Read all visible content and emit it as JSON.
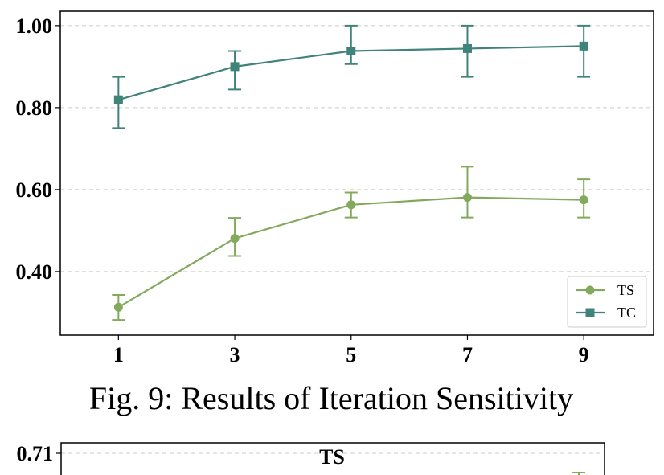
{
  "caption": "Fig. 9: Results of Iteration Sensitivity",
  "chart_data": [
    {
      "type": "line",
      "title": "",
      "xlabel": "",
      "ylabel": "",
      "x": [
        1,
        3,
        5,
        7,
        9
      ],
      "x_tick_labels": [
        "1",
        "3",
        "5",
        "7",
        "9"
      ],
      "y_tick_labels": [
        "0.40",
        "0.60",
        "0.80",
        "1.00"
      ],
      "y_ticks": [
        0.4,
        0.6,
        0.8,
        1.0
      ],
      "ylim": [
        0.245,
        1.035
      ],
      "xlim": [
        0,
        10.2
      ],
      "grid": "horizontal dashed",
      "legend_position": "lower-right",
      "series": [
        {
          "name": "TS",
          "marker": "circle",
          "color": "#83a95c",
          "values": [
            0.313,
            0.481,
            0.563,
            0.581,
            0.575
          ],
          "error_low": [
            0.282,
            0.438,
            0.532,
            0.532,
            0.532
          ],
          "error_high": [
            0.343,
            0.531,
            0.593,
            0.656,
            0.625
          ]
        },
        {
          "name": "TC",
          "marker": "square",
          "color": "#3f837a",
          "values": [
            0.819,
            0.9,
            0.938,
            0.944,
            0.95
          ],
          "error_low": [
            0.75,
            0.844,
            0.906,
            0.875,
            0.875
          ],
          "error_high": [
            0.875,
            0.938,
            1.0,
            1.0,
            1.0
          ]
        }
      ]
    },
    {
      "type": "line",
      "title": "TS",
      "y_tick_labels": [
        "0.71"
      ],
      "y_ticks": [
        0.71
      ],
      "grid": "horizontal dashed",
      "series": [
        {
          "color": "#83a95c"
        }
      ]
    }
  ]
}
